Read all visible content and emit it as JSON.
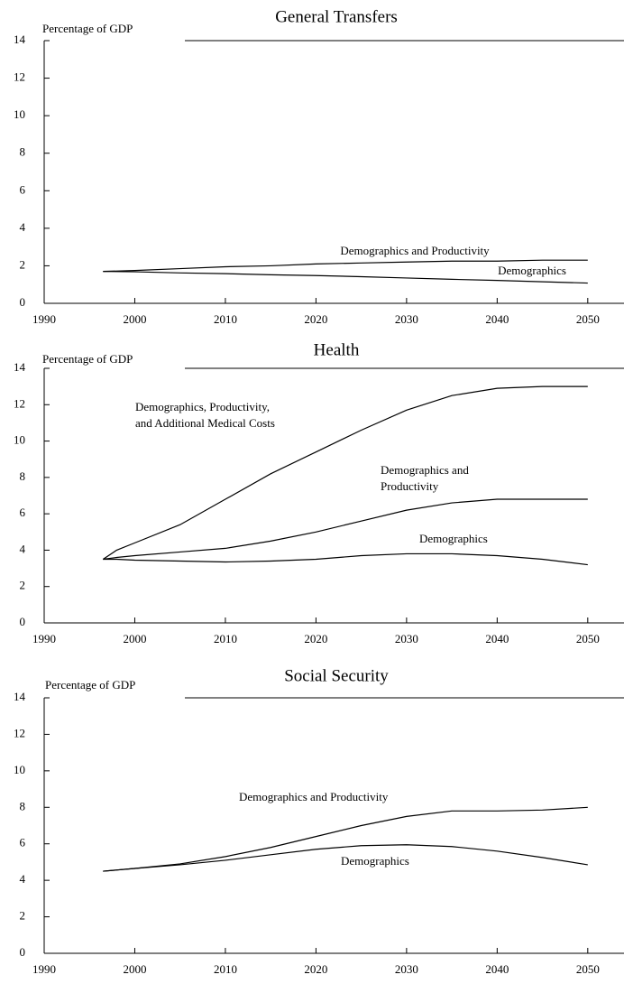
{
  "chart_data": [
    {
      "type": "line",
      "title": "General Transfers",
      "ylabel": "Percentage of GDP",
      "x": [
        1996.5,
        2000,
        2005,
        2010,
        2015,
        2020,
        2025,
        2030,
        2035,
        2040,
        2045,
        2050
      ],
      "series": [
        {
          "name": [
            "Demographics and Productivity"
          ],
          "color": "#000000",
          "values": [
            1.7,
            1.75,
            1.85,
            1.95,
            2.0,
            2.1,
            2.15,
            2.2,
            2.25,
            2.25,
            2.3,
            2.3
          ]
        },
        {
          "name": [
            "Demographics"
          ],
          "color": "#000000",
          "values": [
            1.7,
            1.68,
            1.62,
            1.58,
            1.52,
            1.48,
            1.42,
            1.35,
            1.28,
            1.22,
            1.15,
            1.08
          ]
        }
      ],
      "xlim": [
        1990,
        2054
      ],
      "xticks": [
        1990,
        2000,
        2010,
        2020,
        2030,
        2040,
        2050
      ],
      "ylim": [
        0,
        14
      ],
      "yticks": [
        0,
        2,
        4,
        6,
        8,
        10,
        12,
        14
      ]
    },
    {
      "type": "line",
      "title": "Health",
      "ylabel": "Percentage of GDP",
      "x": [
        1996.5,
        1998,
        2000,
        2005,
        2010,
        2015,
        2020,
        2025,
        2030,
        2035,
        2040,
        2045,
        2050
      ],
      "series": [
        {
          "name": [
            "Demographics, Productivity,",
            "and Additional Medical Costs"
          ],
          "color": "#000000",
          "values": [
            3.5,
            4.0,
            4.4,
            5.4,
            6.8,
            8.2,
            9.4,
            10.6,
            11.7,
            12.5,
            12.9,
            13.0,
            13.0
          ]
        },
        {
          "name": [
            "Demographics and",
            "Productivity"
          ],
          "color": "#000000",
          "values": [
            3.5,
            3.6,
            3.7,
            3.9,
            4.1,
            4.5,
            5.0,
            5.6,
            6.2,
            6.6,
            6.8,
            6.8,
            6.8
          ]
        },
        {
          "name": [
            "Demographics"
          ],
          "color": "#000000",
          "values": [
            3.5,
            3.5,
            3.45,
            3.4,
            3.35,
            3.4,
            3.5,
            3.7,
            3.8,
            3.8,
            3.7,
            3.5,
            3.2
          ]
        }
      ],
      "xlim": [
        1990,
        2054
      ],
      "xticks": [
        1990,
        2000,
        2010,
        2020,
        2030,
        2040,
        2050
      ],
      "ylim": [
        0,
        14
      ],
      "yticks": [
        0,
        2,
        4,
        6,
        8,
        10,
        12,
        14
      ]
    },
    {
      "type": "line",
      "title": "Social Security",
      "ylabel": "Percentage of GDP",
      "x": [
        1996.5,
        2000,
        2005,
        2010,
        2015,
        2020,
        2025,
        2030,
        2035,
        2040,
        2045,
        2050
      ],
      "series": [
        {
          "name": [
            "Demographics and Productivity"
          ],
          "color": "#000000",
          "values": [
            4.5,
            4.65,
            4.9,
            5.3,
            5.8,
            6.4,
            7.0,
            7.5,
            7.8,
            7.8,
            7.85,
            8.0
          ]
        },
        {
          "name": [
            "Demographics"
          ],
          "color": "#000000",
          "values": [
            4.5,
            4.65,
            4.85,
            5.1,
            5.4,
            5.7,
            5.9,
            5.95,
            5.85,
            5.6,
            5.25,
            4.85
          ]
        }
      ],
      "xlim": [
        1990,
        2054
      ],
      "xticks": [
        1990,
        2000,
        2010,
        2020,
        2030,
        2040,
        2050
      ],
      "ylim": [
        0,
        14
      ],
      "yticks": [
        0,
        2,
        4,
        6,
        8,
        10,
        12,
        14
      ]
    }
  ]
}
